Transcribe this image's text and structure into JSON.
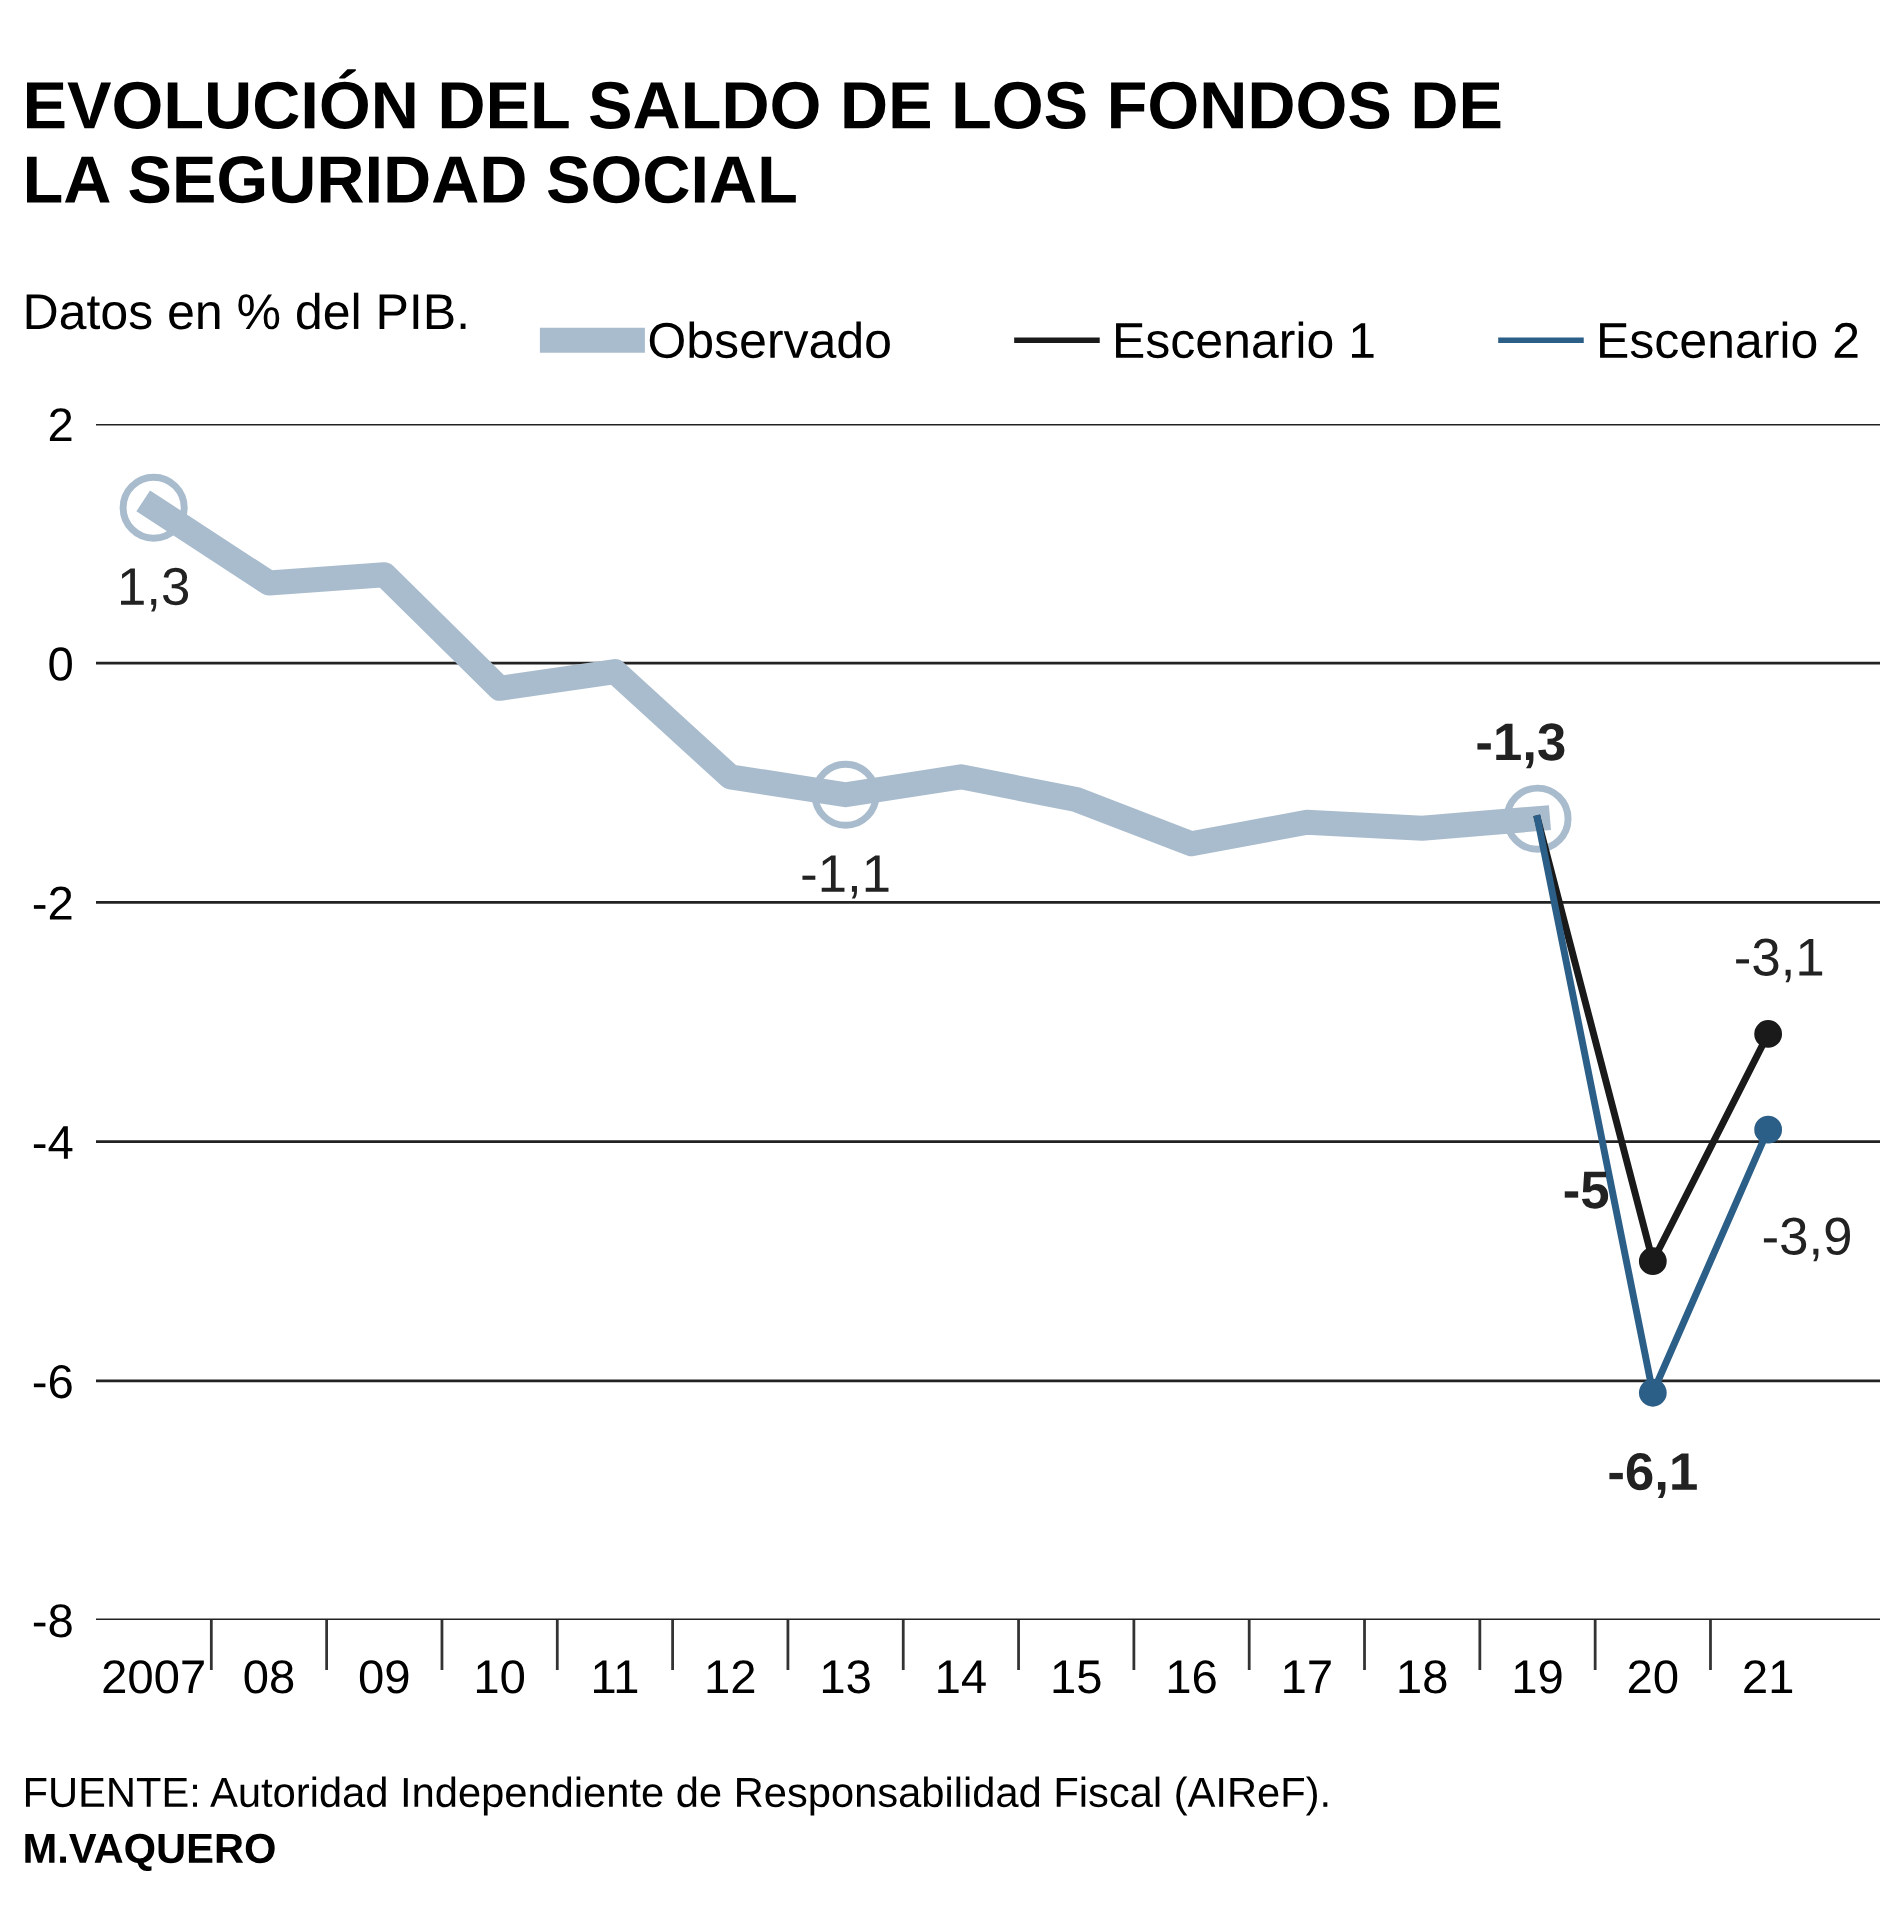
{
  "chart_data": {
    "type": "line",
    "title": "EVOLUCIÓN DEL SALDO DE LOS FONDOS DE\nLA SEGURIDAD SOCIAL",
    "ylabel": "Datos en % del PIB.",
    "categories": [
      "2007",
      "08",
      "09",
      "10",
      "11",
      "12",
      "13",
      "14",
      "15",
      "16",
      "17",
      "18",
      "19",
      "20",
      "21"
    ],
    "series": [
      {
        "name": "Observado",
        "color": "#a9bccd",
        "values": [
          1.3,
          0.67,
          0.74,
          -0.21,
          -0.07,
          -0.95,
          -1.1,
          -0.95,
          -1.14,
          -1.51,
          -1.33,
          -1.38,
          -1.3,
          null,
          null
        ],
        "value_labels": [
          "1,3",
          null,
          null,
          null,
          null,
          null,
          "-1,1",
          null,
          null,
          null,
          null,
          null,
          "-1,3",
          null,
          null
        ]
      },
      {
        "name": "Escenario 1",
        "color": "#1a1a1a",
        "values": [
          null,
          null,
          null,
          null,
          null,
          null,
          null,
          null,
          null,
          null,
          null,
          null,
          -1.3,
          -5,
          -3.1
        ],
        "value_labels": [
          null,
          null,
          null,
          null,
          null,
          null,
          null,
          null,
          null,
          null,
          null,
          null,
          null,
          "-5",
          "-3,1"
        ]
      },
      {
        "name": "Escenario 2",
        "color": "#2c5f88",
        "values": [
          null,
          null,
          null,
          null,
          null,
          null,
          null,
          null,
          null,
          null,
          null,
          null,
          -1.3,
          -6.1,
          -3.9
        ],
        "value_labels": [
          null,
          null,
          null,
          null,
          null,
          null,
          null,
          null,
          null,
          null,
          null,
          null,
          null,
          "-6,1",
          "-3,9"
        ]
      }
    ],
    "ylim": [
      -8,
      2
    ],
    "yticks": [
      -8,
      -6,
      -4,
      -2,
      0,
      2
    ],
    "grid": "y",
    "legend": "top",
    "annotations": [
      "FUENTE: Autoridad Independiente de Responsabilidad Fiscal (AIReF).",
      "M.VAQUERO"
    ]
  }
}
